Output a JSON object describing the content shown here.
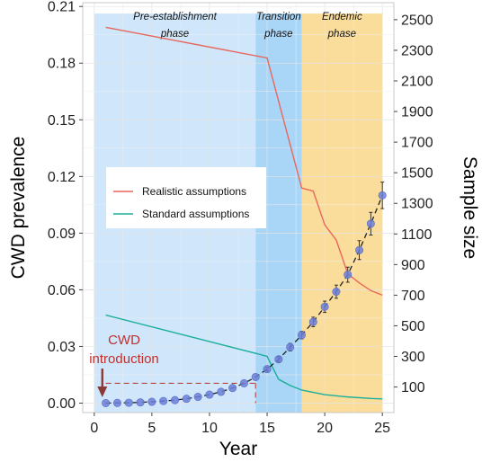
{
  "chart_data": {
    "type": "line",
    "xlabel": "Year",
    "ylabel_left": "CWD prevalence",
    "ylabel_right": "Sample size",
    "xlim": [
      -1,
      26
    ],
    "ylim_left": [
      -0.005,
      0.212
    ],
    "ylim_right": [
      -67,
      2611
    ],
    "x_ticks": [
      0,
      5,
      10,
      15,
      20,
      25
    ],
    "y_left_ticks": [
      "0.00",
      "0.03",
      "0.06",
      "0.09",
      "0.12",
      "0.15",
      "0.18",
      "0.21"
    ],
    "y_right_ticks": [
      "100",
      "300",
      "500",
      "700",
      "900",
      "1100",
      "1300",
      "1500",
      "1700",
      "1900",
      "2100",
      "2300",
      "2500"
    ],
    "grid": true,
    "phases": [
      {
        "name": "Pre-establishment phase",
        "line1": "Pre-establishment",
        "line2": "phase",
        "x_start": 0,
        "x_end": 14,
        "color": "#cfe6fb"
      },
      {
        "name": "Transition phase",
        "line1": "Transition",
        "line2": "phase",
        "x_start": 14,
        "x_end": 18,
        "color": "#a9d5f7"
      },
      {
        "name": "Endemic phase",
        "line1": "Endemic",
        "line2": "phase",
        "x_start": 18,
        "x_end": 25,
        "color": "#fbdd9b"
      }
    ],
    "series": [
      {
        "name": "Realistic assumptions",
        "axis": "right",
        "color": "#e8675c",
        "x": [
          1,
          15,
          18,
          19,
          20,
          21,
          22,
          23,
          24,
          25
        ],
        "y": [
          2450,
          2250,
          1400,
          1380,
          1160,
          1060,
          840,
          780,
          730,
          700
        ]
      },
      {
        "name": "Standard assumptions",
        "axis": "right",
        "color": "#1aaf9a",
        "x": [
          1,
          14,
          15,
          16,
          17,
          18,
          20,
          22,
          24,
          25
        ],
        "y": [
          570,
          320,
          300,
          150,
          110,
          80,
          50,
          35,
          25,
          22
        ]
      },
      {
        "name": "",
        "axis": "left",
        "color": "#6b7fd7",
        "x": [
          1,
          2,
          3,
          4,
          5,
          6,
          7,
          8,
          9,
          10,
          11,
          12,
          13,
          14,
          15,
          16,
          17,
          18,
          19,
          20,
          21,
          22,
          23,
          24,
          25
        ],
        "y": [
          0.0,
          0.0001,
          0.0002,
          0.0004,
          0.0007,
          0.0011,
          0.0016,
          0.0023,
          0.0033,
          0.0045,
          0.006,
          0.008,
          0.0105,
          0.0138,
          0.018,
          0.0232,
          0.0296,
          0.036,
          0.043,
          0.051,
          0.059,
          0.068,
          0.081,
          0.095,
          0.11
        ],
        "error": [
          0,
          0,
          0,
          0,
          0,
          0,
          0,
          0,
          0,
          0,
          0,
          0,
          0,
          0,
          0.001,
          0.0015,
          0.002,
          0.002,
          0.0025,
          0.003,
          0.0035,
          0.004,
          0.005,
          0.006,
          0.007
        ]
      }
    ],
    "threshold_line": {
      "y": 0.0105,
      "x_start": 1,
      "x_end": 14
    },
    "annotation": {
      "line1": "CWD",
      "line2": "introduction",
      "x": 0.7
    }
  }
}
